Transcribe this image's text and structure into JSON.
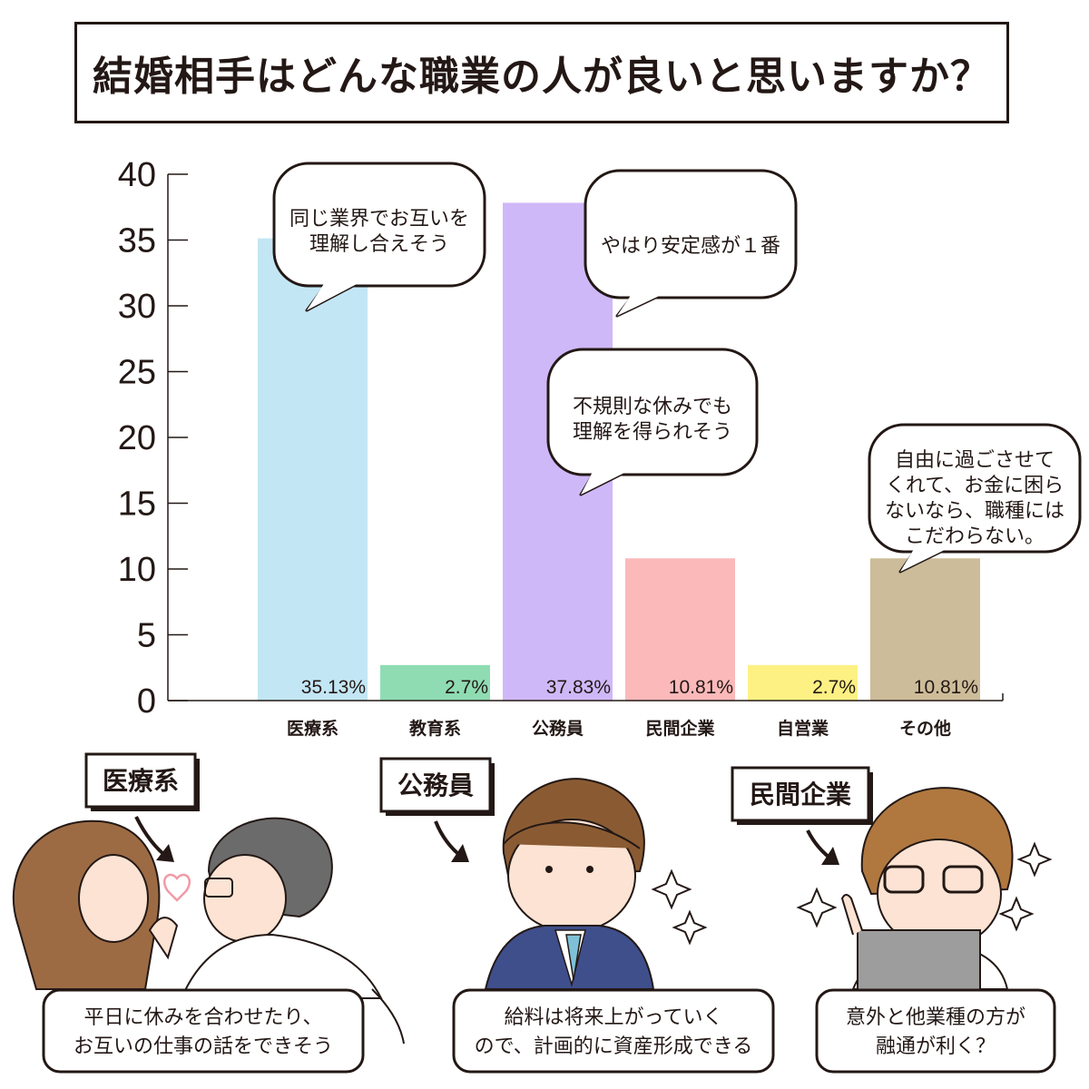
{
  "title": "結婚相手はどんな職業の人が良いと思いますか？",
  "chart_data": {
    "type": "bar",
    "categories": [
      "医療系",
      "教育系",
      "公務員",
      "民間企業",
      "自営業",
      "その他"
    ],
    "values": [
      35.13,
      2.7,
      37.83,
      10.81,
      2.7,
      10.81
    ],
    "value_labels": [
      "35.13%",
      "2.7%",
      "37.83%",
      "10.81%",
      "2.7%",
      "10.81%"
    ],
    "colors": [
      "#c3e6f4",
      "#8fdcb3",
      "#cfb8f7",
      "#fbb9ba",
      "#fdf184",
      "#cdbc99"
    ],
    "ylim": [
      0,
      40
    ],
    "yticks": [
      0,
      5,
      10,
      15,
      20,
      25,
      30,
      35,
      40
    ],
    "grid": false
  },
  "bubbles": [
    {
      "lines": [
        "同じ業界でお互いを",
        "理解し合えそう"
      ]
    },
    {
      "lines": [
        "やはり安定感が１番"
      ]
    },
    {
      "lines": [
        "不規則な休みでも",
        "理解を得られそう"
      ]
    },
    {
      "lines": [
        "自由に過ごさせて",
        "くれて、お金に困ら",
        "ないなら、職種には",
        "こだわらない。"
      ]
    }
  ],
  "illustrations": [
    {
      "tag": "医療系",
      "caption": [
        "平日に休みを合わせたり、",
        "お互いの仕事の話をできそう"
      ]
    },
    {
      "tag": "公務員",
      "caption": [
        "給料は将来上がっていく",
        "ので、計画的に資産形成できる"
      ]
    },
    {
      "tag": "民間企業",
      "caption": [
        "意外と他業種の方が",
        "融通が利く？"
      ]
    }
  ]
}
